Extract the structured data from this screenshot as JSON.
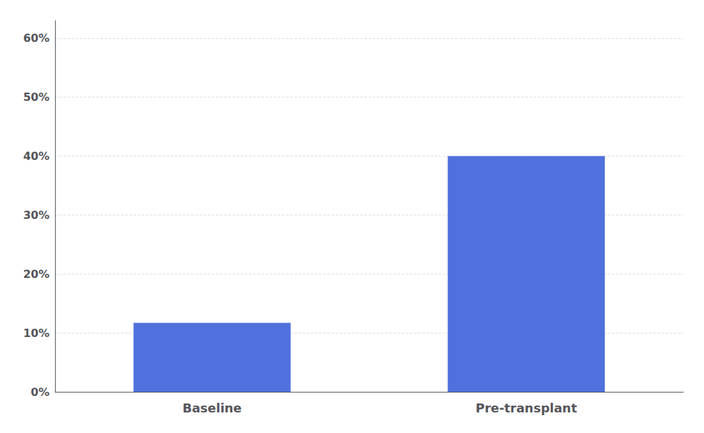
{
  "chart_data": {
    "type": "bar",
    "categories": [
      "Baseline",
      "Pre-transplant"
    ],
    "values": [
      0.117,
      0.4
    ],
    "ylim": [
      0,
      0.63
    ],
    "yticks": [
      {
        "value": 0.0,
        "label": "0%"
      },
      {
        "value": 0.1,
        "label": "10%"
      },
      {
        "value": 0.2,
        "label": "20%"
      },
      {
        "value": 0.3,
        "label": "30%"
      },
      {
        "value": 0.4,
        "label": "40%"
      },
      {
        "value": 0.5,
        "label": "50%"
      },
      {
        "value": 0.6,
        "label": "60%"
      }
    ],
    "grid": true
  }
}
